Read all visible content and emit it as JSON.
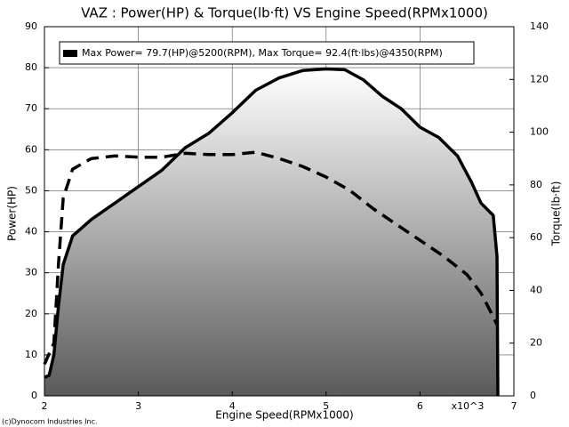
{
  "chart_data": {
    "type": "line",
    "title": "VAZ : Power(HP) & Torque(lb·ft) VS Engine Speed(RPMx1000)",
    "x_label": "Engine Speed(RPMx1000)",
    "y_label": "Power(HP)",
    "y2_label": "Torque(lb·ft)",
    "x_annotation": "x10^3",
    "legend_text": "Max Power= 79.7(HP)@5200(RPM), Max Torque= 92.4(ft·lbs)@4350(RPM)",
    "credit": "(c)Dynocom Industries Inc.",
    "xlim": [
      2,
      7
    ],
    "xticks": [
      2,
      3,
      4,
      5,
      6,
      7
    ],
    "ylim": [
      0,
      90
    ],
    "yticks": [
      0,
      10,
      20,
      30,
      40,
      50,
      60,
      70,
      80,
      90
    ],
    "y2lim": [
      0,
      140
    ],
    "y2ticks": [
      0,
      20,
      40,
      60,
      80,
      100,
      120,
      140
    ],
    "grid": true,
    "series": [
      {
        "name": "Power",
        "color": "#000000",
        "line_style": "solid",
        "fill": true,
        "axis": "y",
        "x": [
          2.0,
          2.05,
          2.1,
          2.15,
          2.2,
          2.3,
          2.5,
          2.75,
          3.0,
          3.25,
          3.5,
          3.75,
          4.0,
          4.25,
          4.5,
          4.75,
          5.0,
          5.2,
          5.4,
          5.6,
          5.8,
          6.0,
          6.2,
          6.4,
          6.55,
          6.65,
          6.78,
          6.82,
          6.83
        ],
        "values": [
          4.5,
          5,
          10,
          22,
          32,
          39,
          43,
          47,
          51,
          55,
          60.5,
          64,
          69,
          74.5,
          77.5,
          79.3,
          79.7,
          79.5,
          77,
          73,
          70,
          65.5,
          63,
          58.5,
          52,
          47,
          44,
          34,
          0
        ]
      },
      {
        "name": "Torque",
        "color": "#000000",
        "line_style": "dashed",
        "fill": false,
        "axis": "y2",
        "x": [
          2.0,
          2.1,
          2.15,
          2.2,
          2.3,
          2.5,
          2.75,
          3.0,
          3.25,
          3.5,
          3.75,
          4.0,
          4.25,
          4.5,
          4.75,
          5.0,
          5.25,
          5.5,
          5.75,
          6.0,
          6.25,
          6.5,
          6.65,
          6.78,
          6.82
        ],
        "values": [
          12,
          20,
          50,
          75,
          86,
          90,
          91,
          90.5,
          90.5,
          92,
          91.5,
          91.5,
          92.4,
          90,
          87,
          83,
          78,
          71,
          65,
          59,
          53,
          46,
          39,
          30,
          27
        ]
      }
    ]
  }
}
